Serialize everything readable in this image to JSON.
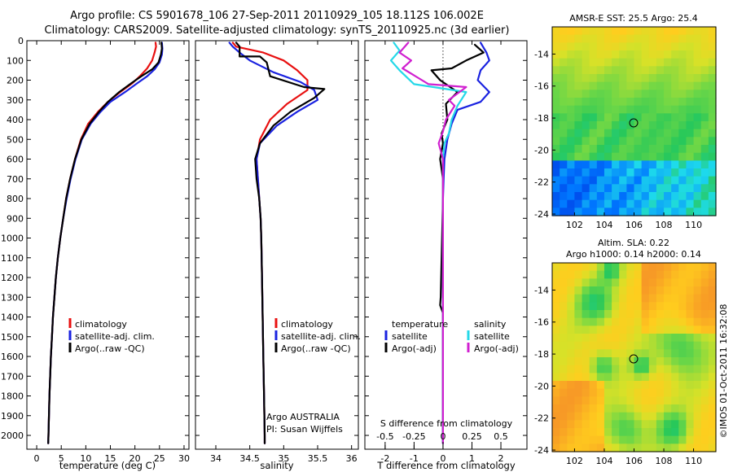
{
  "header": {
    "line1": "Argo profile: CS 5901678_106 27-Sep-2011 20110929_105 18.112S 106.002E",
    "line2": "Climatology: CARS2009. Satellite-adjusted climatology: synTS_20110925.nc (3d earlier)"
  },
  "colors": {
    "climatology": "#e81010",
    "satellite": "#1a22e0",
    "argo": "#000000",
    "sat_salinity": "#25d8e8",
    "argo_salinity": "#d020d0"
  },
  "chart_data": [
    {
      "type": "line",
      "id": "temperature",
      "xlabel": "temperature (deg C)",
      "ylabel": "",
      "xlim": [
        -2,
        31
      ],
      "ylim": [
        2070,
        0
      ],
      "xticks": [
        "0",
        "5",
        "10",
        "15",
        "20",
        "25",
        "30"
      ],
      "yticks": [
        "0",
        "100",
        "200",
        "300",
        "400",
        "500",
        "600",
        "700",
        "800",
        "900",
        "1000",
        "1100",
        "1200",
        "1300",
        "1400",
        "1500",
        "1600",
        "1700",
        "1800",
        "1900",
        "2000"
      ],
      "legend": [
        "climatology",
        "satellite-adj. clim.",
        "Argo(..raw -QC)"
      ],
      "series": [
        {
          "name": "climatology",
          "color": "#e81010",
          "points": [
            [
              24.2,
              10
            ],
            [
              24.3,
              30
            ],
            [
              24.0,
              60
            ],
            [
              23.5,
              100
            ],
            [
              22.5,
              140
            ],
            [
              21,
              180
            ],
            [
              19.5,
              215
            ],
            [
              17,
              260
            ],
            [
              14.5,
              310
            ],
            [
              12.5,
              360
            ],
            [
              10.5,
              420
            ],
            [
              9,
              500
            ],
            [
              7.8,
              600
            ],
            [
              6.8,
              700
            ],
            [
              6,
              800
            ],
            [
              5.4,
              900
            ],
            [
              4.8,
              1000
            ],
            [
              4.3,
              1100
            ],
            [
              3.9,
              1200
            ],
            [
              3.6,
              1300
            ],
            [
              3.3,
              1400
            ],
            [
              3.1,
              1500
            ],
            [
              2.9,
              1600
            ],
            [
              2.75,
              1700
            ],
            [
              2.6,
              1800
            ],
            [
              2.5,
              1900
            ],
            [
              2.4,
              2000
            ],
            [
              2.35,
              2040
            ]
          ]
        },
        {
          "name": "satellite-adj. clim.",
          "color": "#1a22e0",
          "points": [
            [
              25.5,
              10
            ],
            [
              25.6,
              40
            ],
            [
              25.5,
              70
            ],
            [
              25,
              110
            ],
            [
              24,
              145
            ],
            [
              22.5,
              180
            ],
            [
              20.5,
              215
            ],
            [
              18,
              260
            ],
            [
              15,
              310
            ],
            [
              13,
              360
            ],
            [
              11,
              420
            ],
            [
              9.2,
              500
            ],
            [
              7.9,
              600
            ],
            [
              6.9,
              700
            ],
            [
              6.1,
              800
            ],
            [
              5.4,
              900
            ],
            [
              4.8,
              1000
            ],
            [
              4.3,
              1100
            ],
            [
              3.9,
              1200
            ],
            [
              3.6,
              1300
            ],
            [
              3.3,
              1400
            ],
            [
              3.1,
              1500
            ],
            [
              2.9,
              1600
            ],
            [
              2.75,
              1700
            ],
            [
              2.6,
              1800
            ],
            [
              2.5,
              1900
            ],
            [
              2.4,
              2000
            ],
            [
              2.35,
              2040
            ]
          ]
        },
        {
          "name": "Argo(..raw -QC)",
          "color": "#000000",
          "points": [
            [
              25.4,
              10
            ],
            [
              25.5,
              40
            ],
            [
              25.3,
              70
            ],
            [
              24.8,
              110
            ],
            [
              23.5,
              145
            ],
            [
              21.3,
              180
            ],
            [
              19.3,
              215
            ],
            [
              16.8,
              260
            ],
            [
              14.5,
              310
            ],
            [
              12.7,
              360
            ],
            [
              10.8,
              420
            ],
            [
              9.1,
              500
            ],
            [
              7.8,
              600
            ],
            [
              6.8,
              700
            ],
            [
              6,
              800
            ],
            [
              5.4,
              900
            ],
            [
              4.8,
              1000
            ],
            [
              4.3,
              1100
            ],
            [
              3.9,
              1200
            ],
            [
              3.6,
              1300
            ],
            [
              3.3,
              1400
            ],
            [
              3.1,
              1500
            ],
            [
              2.9,
              1600
            ],
            [
              2.75,
              1700
            ],
            [
              2.6,
              1800
            ],
            [
              2.5,
              1900
            ],
            [
              2.4,
              2000
            ],
            [
              2.35,
              2040
            ]
          ]
        }
      ]
    },
    {
      "type": "line",
      "id": "salinity",
      "xlabel": "salinity",
      "xlim": [
        33.7,
        36.1
      ],
      "ylim": [
        2070,
        0
      ],
      "xticks": [
        "34",
        "34.5",
        "35",
        "35.5",
        "36"
      ],
      "legend": [
        "climatology",
        "satellite-adj. clim.",
        "Argo(..raw -QC)"
      ],
      "note": [
        "Argo AUSTRALIA",
        "PI: Susan Wijffels"
      ],
      "series": [
        {
          "name": "climatology",
          "color": "#e81010",
          "points": [
            [
              34.25,
              10
            ],
            [
              34.3,
              30
            ],
            [
              34.7,
              60
            ],
            [
              35.0,
              100
            ],
            [
              35.2,
              150
            ],
            [
              35.35,
              200
            ],
            [
              35.35,
              250
            ],
            [
              35.05,
              320
            ],
            [
              34.8,
              400
            ],
            [
              34.65,
              500
            ],
            [
              34.6,
              600
            ],
            [
              34.62,
              700
            ],
            [
              34.64,
              800
            ],
            [
              34.66,
              900
            ],
            [
              34.67,
              1000
            ],
            [
              34.68,
              1200
            ],
            [
              34.69,
              1400
            ],
            [
              34.7,
              1600
            ],
            [
              34.71,
              1800
            ],
            [
              34.72,
              2000
            ],
            [
              34.72,
              2040
            ]
          ]
        },
        {
          "name": "satellite-adj. clim.",
          "color": "#1a22e0",
          "points": [
            [
              34.2,
              10
            ],
            [
              34.25,
              30
            ],
            [
              34.35,
              60
            ],
            [
              34.5,
              100
            ],
            [
              34.85,
              160
            ],
            [
              35.25,
              210
            ],
            [
              35.45,
              250
            ],
            [
              35.5,
              300
            ],
            [
              35.2,
              360
            ],
            [
              34.9,
              430
            ],
            [
              34.65,
              520
            ],
            [
              34.6,
              600
            ],
            [
              34.62,
              700
            ],
            [
              34.64,
              800
            ],
            [
              34.66,
              900
            ],
            [
              34.67,
              1000
            ],
            [
              34.68,
              1200
            ],
            [
              34.69,
              1400
            ],
            [
              34.7,
              1600
            ],
            [
              34.71,
              1800
            ],
            [
              34.72,
              2000
            ],
            [
              34.72,
              2040
            ]
          ]
        },
        {
          "name": "Argo(..raw -QC)",
          "color": "#000000",
          "points": [
            [
              34.3,
              10
            ],
            [
              34.35,
              30
            ],
            [
              34.35,
              80
            ],
            [
              34.65,
              80
            ],
            [
              34.75,
              110
            ],
            [
              34.8,
              180
            ],
            [
              35.3,
              235
            ],
            [
              35.6,
              245
            ],
            [
              35.45,
              290
            ],
            [
              35.1,
              360
            ],
            [
              34.85,
              430
            ],
            [
              34.65,
              520
            ],
            [
              34.58,
              600
            ],
            [
              34.6,
              700
            ],
            [
              34.64,
              800
            ],
            [
              34.66,
              900
            ],
            [
              34.67,
              1000
            ],
            [
              34.68,
              1200
            ],
            [
              34.69,
              1400
            ],
            [
              34.7,
              1600
            ],
            [
              34.71,
              1800
            ],
            [
              34.72,
              2000
            ],
            [
              34.72,
              2040
            ]
          ]
        }
      ]
    },
    {
      "type": "line",
      "id": "differences",
      "xlabel": "T difference from climatology",
      "top_label": "S difference from climatology",
      "xlim": [
        -2.7,
        2.9
      ],
      "ylim": [
        2070,
        0
      ],
      "xticks": [
        "-2",
        "-1",
        "0",
        "1",
        "2"
      ],
      "sticks": [
        "-0.5",
        "-0.25",
        "0",
        "0.25",
        "0.5"
      ],
      "legend_t_title": "temperature",
      "legend_s_title": "salinity",
      "legend_t": [
        "satellite",
        "Argo(-adj)"
      ],
      "legend_s": [
        "satellite",
        "Argo(-adj)"
      ],
      "series": [
        {
          "name": "temperature satellite",
          "color": "#1a22e0",
          "points": [
            [
              1.3,
              10
            ],
            [
              1.5,
              60
            ],
            [
              1.6,
              100
            ],
            [
              1.3,
              150
            ],
            [
              1.2,
              200
            ],
            [
              1.6,
              260
            ],
            [
              1.3,
              310
            ],
            [
              0.5,
              350
            ],
            [
              0.3,
              420
            ],
            [
              0.15,
              500
            ],
            [
              0.05,
              600
            ],
            [
              0.02,
              700
            ],
            [
              0,
              800
            ],
            [
              0,
              1200
            ],
            [
              0,
              1600
            ],
            [
              0,
              2040
            ]
          ]
        },
        {
          "name": "temperature Argo(-adj)",
          "color": "#000000",
          "points": [
            [
              1.1,
              20
            ],
            [
              1.4,
              60
            ],
            [
              0.8,
              100
            ],
            [
              0.3,
              140
            ],
            [
              -0.4,
              150
            ],
            [
              -0.1,
              200
            ],
            [
              0.5,
              260
            ],
            [
              0.1,
              320
            ],
            [
              0.15,
              400
            ],
            [
              -0.05,
              470
            ],
            [
              0,
              520
            ],
            [
              -0.1,
              600
            ],
            [
              0,
              700
            ],
            [
              0,
              800
            ],
            [
              -0.08,
              1300
            ],
            [
              -0.1,
              1340
            ],
            [
              0,
              1380
            ],
            [
              0,
              2040
            ]
          ]
        },
        {
          "name": "salinity satellite",
          "color": "#25d8e8",
          "points": [
            [
              -1.7,
              10
            ],
            [
              -1.5,
              50
            ],
            [
              -1.8,
              100
            ],
            [
              -1.5,
              150
            ],
            [
              -1.0,
              220
            ],
            [
              0.8,
              260
            ],
            [
              0.5,
              330
            ],
            [
              0.3,
              400
            ],
            [
              0.2,
              470
            ],
            [
              0.05,
              520
            ],
            [
              0,
              600
            ],
            [
              0,
              800
            ],
            [
              0,
              1200
            ],
            [
              0,
              2040
            ]
          ]
        },
        {
          "name": "salinity Argo(-adj)",
          "color": "#d020d0",
          "points": [
            [
              -1.2,
              10
            ],
            [
              -1.5,
              60
            ],
            [
              -1.1,
              100
            ],
            [
              -1.4,
              140
            ],
            [
              -0.5,
              220
            ],
            [
              0.8,
              235
            ],
            [
              0.2,
              300
            ],
            [
              0.4,
              330
            ],
            [
              0.1,
              400
            ],
            [
              0,
              460
            ],
            [
              -0.15,
              520
            ],
            [
              0,
              600
            ],
            [
              0,
              800
            ],
            [
              0,
              2040
            ]
          ]
        }
      ]
    },
    {
      "type": "heatmap",
      "id": "sst-map",
      "title": "AMSR-E SST: 25.5 Argo: 25.4",
      "xlim": [
        100.5,
        111.5
      ],
      "ylim": [
        -24.1,
        -12.3
      ],
      "xticks": [
        "102",
        "104",
        "106",
        "108",
        "110"
      ],
      "yticks": [
        "-14",
        "-16",
        "-18",
        "-20",
        "-22",
        "-24"
      ],
      "marker": {
        "lon": 106.0,
        "lat": -18.1
      }
    },
    {
      "type": "heatmap",
      "id": "sla-map",
      "title_lines": [
        "Altim. SLA: 0.22",
        "Argo h1000: 0.14 h2000: 0.14"
      ],
      "xlim": [
        100.5,
        111.5
      ],
      "ylim": [
        -24.1,
        -12.3
      ],
      "xticks": [
        "102",
        "104",
        "106",
        "108",
        "110"
      ],
      "yticks": [
        "-14",
        "-16",
        "-18",
        "-20",
        "-22",
        "-24"
      ],
      "marker": {
        "lon": 106.0,
        "lat": -18.1
      }
    }
  ],
  "footer": {
    "credit": "©IMOS 01-Oct-2011 16:32:08"
  }
}
